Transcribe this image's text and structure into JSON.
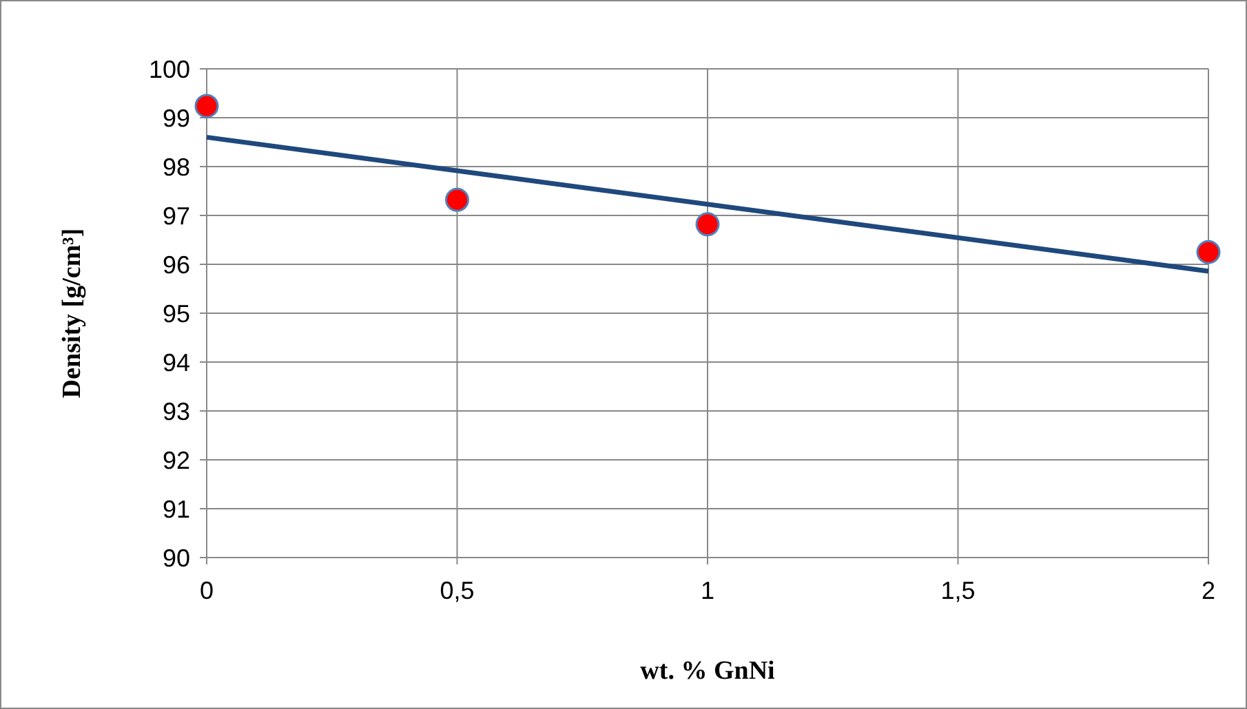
{
  "chart_data": {
    "type": "scatter",
    "xlabel": "wt. % GnNi",
    "ylabel": "Density [g/cm³]",
    "xlim": [
      0,
      2
    ],
    "xticks": [
      0,
      {
        "value": 0.5,
        "label": "0,5"
      },
      1,
      {
        "value": 1.5,
        "label": "1,5"
      },
      2
    ],
    "ylim": [
      90,
      100
    ],
    "yticks": [
      90,
      91,
      92,
      93,
      94,
      95,
      96,
      97,
      98,
      99,
      100
    ],
    "grid": true,
    "marker": "circle",
    "series": [
      {
        "color": "#ff0000",
        "x": [
          0,
          0.5,
          1,
          2
        ],
        "values": [
          99.24,
          97.32,
          96.82,
          96.25
        ]
      },
      {
        "type": "line",
        "color": "#1f497d",
        "x": [
          0,
          2
        ],
        "values": [
          98.6,
          95.86
        ],
        "marker": "none",
        "line_style": "solid"
      }
    ]
  }
}
